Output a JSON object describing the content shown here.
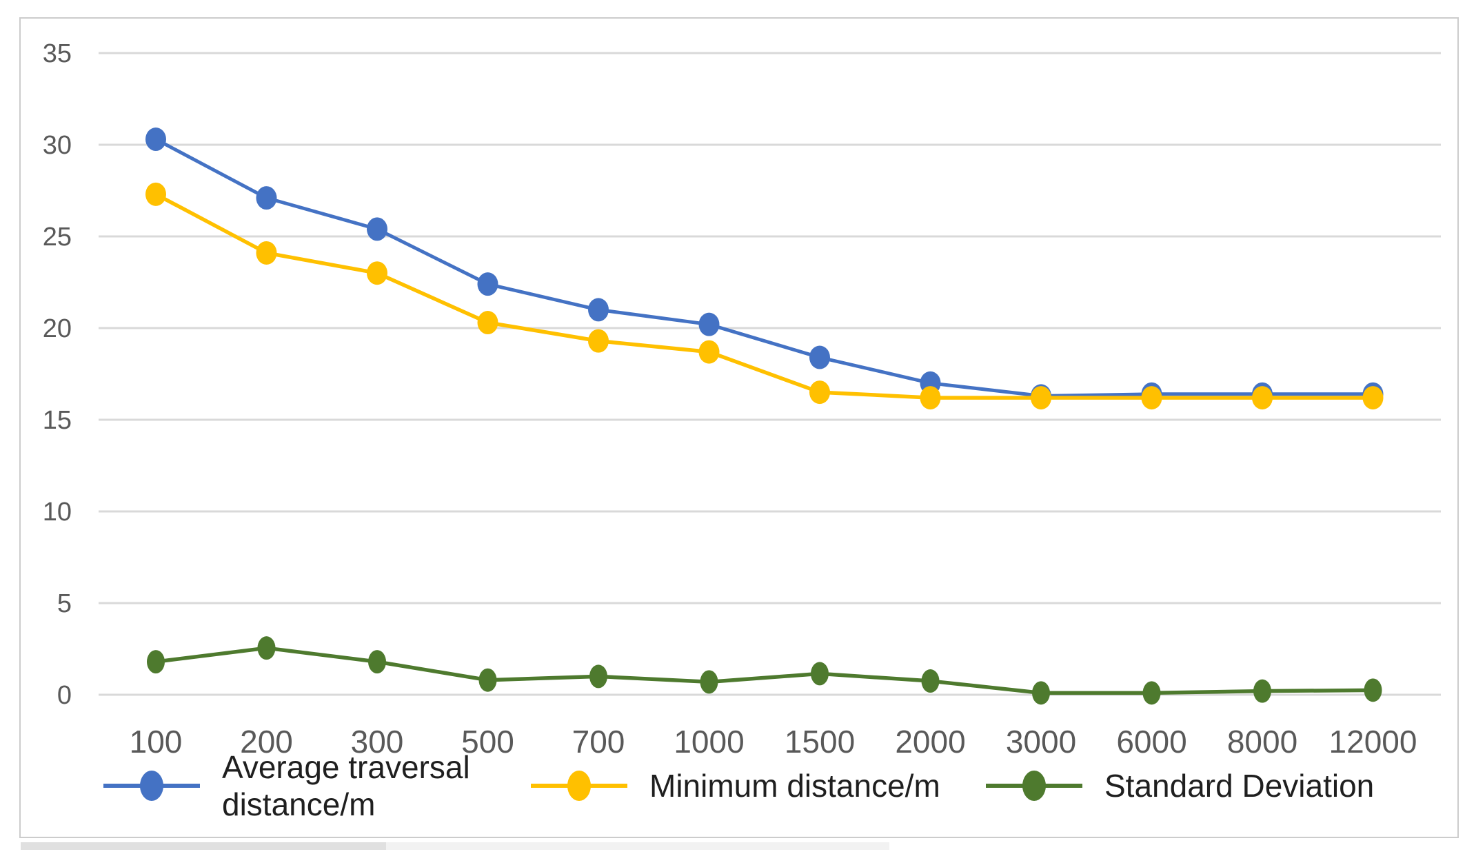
{
  "chart_data": {
    "type": "line",
    "title": "",
    "xlabel": "",
    "ylabel": "",
    "categories": [
      "100",
      "200",
      "300",
      "500",
      "700",
      "1000",
      "1500",
      "2000",
      "3000",
      "6000",
      "8000",
      "12000"
    ],
    "series": [
      {
        "name": "Average traversal distance/m",
        "color": "#4472C4",
        "values": [
          30.3,
          27.1,
          25.4,
          22.4,
          21.0,
          20.2,
          18.4,
          17.0,
          16.3,
          16.4,
          16.4,
          16.4
        ]
      },
      {
        "name": "Minimum distance/m",
        "color": "#FFC000",
        "values": [
          27.3,
          24.1,
          23.0,
          20.3,
          19.3,
          18.7,
          16.5,
          16.2,
          16.2,
          16.2,
          16.2,
          16.2
        ]
      },
      {
        "name": "Standard Deviation",
        "color": "#4E7A2E",
        "values": [
          1.8,
          2.55,
          1.8,
          0.8,
          1.0,
          0.7,
          1.15,
          0.75,
          0.1,
          0.1,
          0.2,
          0.25
        ]
      }
    ],
    "ylim": [
      0,
      35
    ],
    "yticks": [
      0,
      5,
      10,
      15,
      20,
      25,
      30,
      35
    ],
    "grid": "horizontal",
    "legend_position": "bottom",
    "gridline_color": "#D9D9D9",
    "axis_label_color": "#595959",
    "frame_border_color": "#CCCCCC"
  }
}
